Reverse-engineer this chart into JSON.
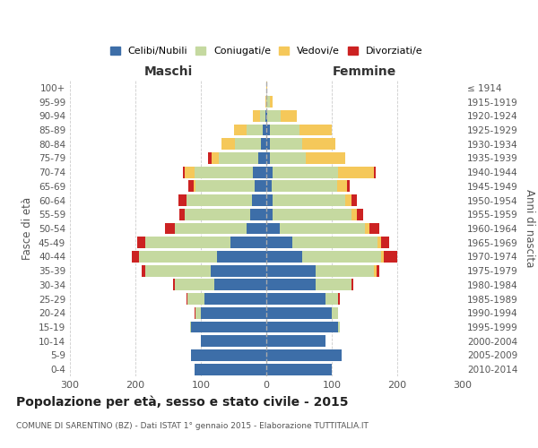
{
  "age_groups": [
    "0-4",
    "5-9",
    "10-14",
    "15-19",
    "20-24",
    "25-29",
    "30-34",
    "35-39",
    "40-44",
    "45-49",
    "50-54",
    "55-59",
    "60-64",
    "65-69",
    "70-74",
    "75-79",
    "80-84",
    "85-89",
    "90-94",
    "95-99",
    "100+"
  ],
  "birth_years": [
    "2010-2014",
    "2005-2009",
    "2000-2004",
    "1995-1999",
    "1990-1994",
    "1985-1989",
    "1980-1984",
    "1975-1979",
    "1970-1974",
    "1965-1969",
    "1960-1964",
    "1955-1959",
    "1950-1954",
    "1945-1949",
    "1940-1944",
    "1935-1939",
    "1930-1934",
    "1925-1929",
    "1920-1924",
    "1915-1919",
    "≤ 1914"
  ],
  "maschi_celibe": [
    110,
    115,
    100,
    115,
    100,
    95,
    80,
    85,
    75,
    55,
    30,
    25,
    22,
    18,
    20,
    12,
    8,
    5,
    2,
    0,
    0
  ],
  "maschi_coniugato": [
    0,
    0,
    0,
    2,
    8,
    25,
    60,
    100,
    120,
    130,
    110,
    100,
    100,
    90,
    90,
    60,
    40,
    25,
    8,
    0,
    0
  ],
  "maschi_vedovo": [
    0,
    0,
    0,
    0,
    0,
    0,
    0,
    0,
    0,
    0,
    0,
    0,
    0,
    3,
    15,
    12,
    20,
    20,
    10,
    2,
    0
  ],
  "maschi_divorziato": [
    0,
    0,
    0,
    0,
    1,
    2,
    3,
    5,
    10,
    12,
    15,
    8,
    12,
    8,
    3,
    5,
    0,
    0,
    0,
    0,
    0
  ],
  "femmine_nubile": [
    100,
    115,
    90,
    110,
    100,
    90,
    75,
    75,
    55,
    40,
    20,
    10,
    10,
    8,
    10,
    5,
    5,
    5,
    2,
    0,
    0
  ],
  "femmine_coniugata": [
    0,
    0,
    0,
    3,
    10,
    20,
    55,
    90,
    120,
    130,
    130,
    120,
    110,
    100,
    100,
    55,
    50,
    45,
    20,
    5,
    0
  ],
  "femmine_vedova": [
    0,
    0,
    0,
    0,
    0,
    0,
    0,
    3,
    5,
    5,
    8,
    8,
    10,
    15,
    55,
    60,
    50,
    50,
    25,
    5,
    1
  ],
  "femmine_divorziata": [
    0,
    0,
    0,
    0,
    0,
    2,
    3,
    5,
    20,
    12,
    15,
    10,
    8,
    5,
    2,
    0,
    0,
    0,
    0,
    0,
    0
  ],
  "colors": {
    "celibe": "#3d6ea8",
    "coniugato": "#c5d9a0",
    "vedovo": "#f5c85a",
    "divorziato": "#cc2222"
  },
  "xlim": 300,
  "title": "Popolazione per età, sesso e stato civile - 2015",
  "subtitle": "COMUNE DI SARENTINO (BZ) - Dati ISTAT 1° gennaio 2015 - Elaborazione TUTTITALIA.IT",
  "ylabel_left": "Fasce di età",
  "ylabel_right": "Anni di nascita",
  "legend_labels": [
    "Celibi/Nubili",
    "Coniugati/e",
    "Vedovi/e",
    "Divorziati/e"
  ],
  "background_color": "#ffffff"
}
